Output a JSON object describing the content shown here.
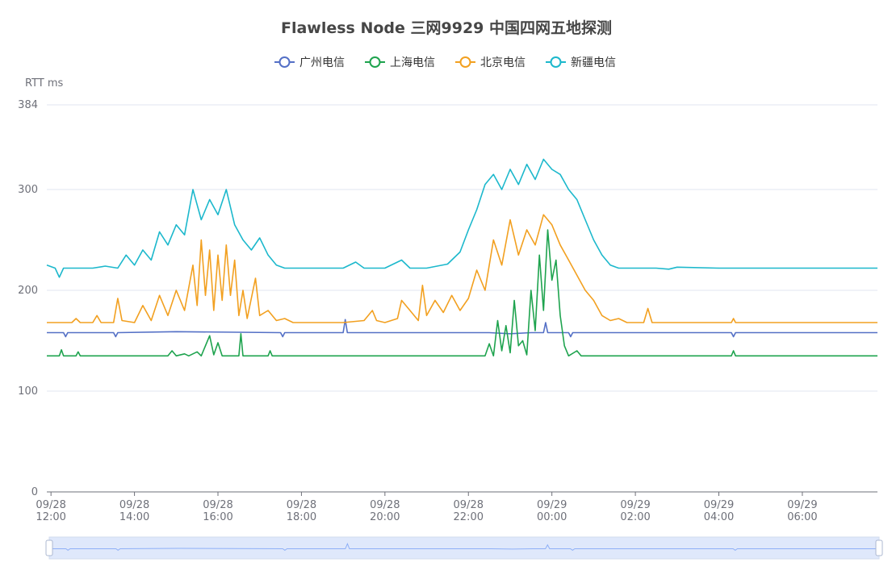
{
  "chart_data": {
    "type": "line",
    "title": "Flawless Node 三网9929 中国四网五地探测",
    "ylabel": "RTT ms",
    "ylim": [
      0,
      384
    ],
    "yticks": [
      0,
      100,
      200,
      300,
      384
    ],
    "xlim_hours": [
      11.9,
      31.8
    ],
    "x_ticks": [
      {
        "hour": 12,
        "label": [
          "09/28",
          "12:00"
        ]
      },
      {
        "hour": 14,
        "label": [
          "09/28",
          "14:00"
        ]
      },
      {
        "hour": 16,
        "label": [
          "09/28",
          "16:00"
        ]
      },
      {
        "hour": 18,
        "label": [
          "09/28",
          "18:00"
        ]
      },
      {
        "hour": 20,
        "label": [
          "09/28",
          "20:00"
        ]
      },
      {
        "hour": 22,
        "label": [
          "09/28",
          "22:00"
        ]
      },
      {
        "hour": 24,
        "label": [
          "09/29",
          "00:00"
        ]
      },
      {
        "hour": 26,
        "label": [
          "09/29",
          "02:00"
        ]
      },
      {
        "hour": 28,
        "label": [
          "09/29",
          "04:00"
        ]
      },
      {
        "hour": 30,
        "label": [
          "09/29",
          "06:00"
        ]
      }
    ],
    "grid": true,
    "legend_position": "top-center",
    "series": [
      {
        "name": "广州电信",
        "color": "#5470c6",
        "points": [
          [
            11.9,
            158
          ],
          [
            12.3,
            158
          ],
          [
            12.35,
            154
          ],
          [
            12.4,
            158
          ],
          [
            13.5,
            158
          ],
          [
            13.55,
            154
          ],
          [
            13.6,
            158
          ],
          [
            15.0,
            159
          ],
          [
            17.5,
            158
          ],
          [
            17.55,
            154
          ],
          [
            17.6,
            158
          ],
          [
            19.0,
            158
          ],
          [
            19.05,
            171
          ],
          [
            19.1,
            158
          ],
          [
            22.5,
            158
          ],
          [
            23.0,
            157
          ],
          [
            23.5,
            158
          ],
          [
            23.8,
            158
          ],
          [
            23.85,
            168
          ],
          [
            23.9,
            158
          ],
          [
            24.4,
            158
          ],
          [
            24.45,
            154
          ],
          [
            24.5,
            158
          ],
          [
            26.0,
            158
          ],
          [
            28.3,
            158
          ],
          [
            28.35,
            154
          ],
          [
            28.4,
            158
          ],
          [
            31.8,
            158
          ]
        ]
      },
      {
        "name": "上海电信",
        "color": "#1ea34e",
        "points": [
          [
            11.9,
            135
          ],
          [
            12.2,
            135
          ],
          [
            12.25,
            141
          ],
          [
            12.3,
            135
          ],
          [
            12.6,
            135
          ],
          [
            12.65,
            139
          ],
          [
            12.7,
            135
          ],
          [
            14.2,
            135
          ],
          [
            14.8,
            135
          ],
          [
            14.9,
            140
          ],
          [
            15.0,
            135
          ],
          [
            15.2,
            137
          ],
          [
            15.3,
            135
          ],
          [
            15.5,
            139
          ],
          [
            15.6,
            135
          ],
          [
            15.8,
            155
          ],
          [
            15.9,
            136
          ],
          [
            16.0,
            148
          ],
          [
            16.1,
            135
          ],
          [
            16.5,
            135
          ],
          [
            16.55,
            157
          ],
          [
            16.6,
            135
          ],
          [
            17.2,
            135
          ],
          [
            17.25,
            140
          ],
          [
            17.3,
            135
          ],
          [
            19.0,
            135
          ],
          [
            22.0,
            135
          ],
          [
            22.4,
            135
          ],
          [
            22.5,
            147
          ],
          [
            22.6,
            135
          ],
          [
            22.7,
            170
          ],
          [
            22.8,
            140
          ],
          [
            22.9,
            165
          ],
          [
            23.0,
            138
          ],
          [
            23.1,
            190
          ],
          [
            23.2,
            145
          ],
          [
            23.3,
            150
          ],
          [
            23.4,
            136
          ],
          [
            23.5,
            200
          ],
          [
            23.6,
            160
          ],
          [
            23.7,
            235
          ],
          [
            23.8,
            180
          ],
          [
            23.9,
            260
          ],
          [
            24.0,
            210
          ],
          [
            24.1,
            230
          ],
          [
            24.2,
            175
          ],
          [
            24.3,
            145
          ],
          [
            24.4,
            135
          ],
          [
            24.6,
            140
          ],
          [
            24.7,
            135
          ],
          [
            26.0,
            135
          ],
          [
            28.3,
            135
          ],
          [
            28.35,
            140
          ],
          [
            28.4,
            135
          ],
          [
            31.8,
            135
          ]
        ]
      },
      {
        "name": "北京电信",
        "color": "#f2a020",
        "points": [
          [
            11.9,
            168
          ],
          [
            12.5,
            168
          ],
          [
            12.6,
            172
          ],
          [
            12.7,
            168
          ],
          [
            13.0,
            168
          ],
          [
            13.1,
            175
          ],
          [
            13.2,
            168
          ],
          [
            13.5,
            168
          ],
          [
            13.6,
            192
          ],
          [
            13.7,
            170
          ],
          [
            14.0,
            168
          ],
          [
            14.2,
            185
          ],
          [
            14.4,
            170
          ],
          [
            14.6,
            195
          ],
          [
            14.8,
            175
          ],
          [
            15.0,
            200
          ],
          [
            15.2,
            180
          ],
          [
            15.4,
            225
          ],
          [
            15.5,
            185
          ],
          [
            15.6,
            250
          ],
          [
            15.7,
            195
          ],
          [
            15.8,
            240
          ],
          [
            15.9,
            180
          ],
          [
            16.0,
            235
          ],
          [
            16.1,
            190
          ],
          [
            16.2,
            245
          ],
          [
            16.3,
            195
          ],
          [
            16.4,
            230
          ],
          [
            16.5,
            175
          ],
          [
            16.6,
            200
          ],
          [
            16.7,
            172
          ],
          [
            16.9,
            212
          ],
          [
            17.0,
            175
          ],
          [
            17.2,
            180
          ],
          [
            17.4,
            170
          ],
          [
            17.6,
            172
          ],
          [
            17.8,
            168
          ],
          [
            19.0,
            168
          ],
          [
            19.5,
            170
          ],
          [
            19.7,
            180
          ],
          [
            19.8,
            170
          ],
          [
            20.0,
            168
          ],
          [
            20.3,
            172
          ],
          [
            20.4,
            190
          ],
          [
            20.6,
            180
          ],
          [
            20.8,
            170
          ],
          [
            20.9,
            205
          ],
          [
            21.0,
            175
          ],
          [
            21.2,
            190
          ],
          [
            21.4,
            178
          ],
          [
            21.6,
            195
          ],
          [
            21.8,
            180
          ],
          [
            22.0,
            192
          ],
          [
            22.2,
            220
          ],
          [
            22.4,
            200
          ],
          [
            22.6,
            250
          ],
          [
            22.8,
            225
          ],
          [
            23.0,
            270
          ],
          [
            23.2,
            235
          ],
          [
            23.4,
            260
          ],
          [
            23.6,
            245
          ],
          [
            23.8,
            275
          ],
          [
            24.0,
            265
          ],
          [
            24.2,
            245
          ],
          [
            24.4,
            230
          ],
          [
            24.6,
            215
          ],
          [
            24.8,
            200
          ],
          [
            25.0,
            190
          ],
          [
            25.2,
            175
          ],
          [
            25.4,
            170
          ],
          [
            25.6,
            172
          ],
          [
            25.8,
            168
          ],
          [
            26.2,
            168
          ],
          [
            26.3,
            182
          ],
          [
            26.4,
            168
          ],
          [
            28.0,
            168
          ],
          [
            28.3,
            168
          ],
          [
            28.35,
            172
          ],
          [
            28.4,
            168
          ],
          [
            31.8,
            168
          ]
        ]
      },
      {
        "name": "新疆电信",
        "color": "#1cb8cc",
        "points": [
          [
            11.9,
            225
          ],
          [
            12.1,
            222
          ],
          [
            12.2,
            213
          ],
          [
            12.3,
            222
          ],
          [
            13.0,
            222
          ],
          [
            13.3,
            224
          ],
          [
            13.6,
            222
          ],
          [
            13.8,
            235
          ],
          [
            14.0,
            225
          ],
          [
            14.2,
            240
          ],
          [
            14.4,
            230
          ],
          [
            14.6,
            258
          ],
          [
            14.8,
            245
          ],
          [
            15.0,
            265
          ],
          [
            15.2,
            255
          ],
          [
            15.4,
            300
          ],
          [
            15.6,
            270
          ],
          [
            15.8,
            290
          ],
          [
            16.0,
            275
          ],
          [
            16.2,
            300
          ],
          [
            16.4,
            265
          ],
          [
            16.6,
            250
          ],
          [
            16.8,
            240
          ],
          [
            17.0,
            252
          ],
          [
            17.2,
            235
          ],
          [
            17.4,
            225
          ],
          [
            17.6,
            222
          ],
          [
            19.0,
            222
          ],
          [
            19.3,
            228
          ],
          [
            19.5,
            222
          ],
          [
            20.0,
            222
          ],
          [
            20.4,
            230
          ],
          [
            20.6,
            222
          ],
          [
            21.0,
            222
          ],
          [
            21.5,
            226
          ],
          [
            21.8,
            238
          ],
          [
            22.0,
            260
          ],
          [
            22.2,
            280
          ],
          [
            22.4,
            305
          ],
          [
            22.6,
            315
          ],
          [
            22.8,
            300
          ],
          [
            23.0,
            320
          ],
          [
            23.2,
            305
          ],
          [
            23.4,
            325
          ],
          [
            23.6,
            310
          ],
          [
            23.8,
            330
          ],
          [
            24.0,
            320
          ],
          [
            24.2,
            315
          ],
          [
            24.4,
            300
          ],
          [
            24.6,
            290
          ],
          [
            24.8,
            270
          ],
          [
            25.0,
            250
          ],
          [
            25.2,
            235
          ],
          [
            25.4,
            225
          ],
          [
            25.6,
            222
          ],
          [
            26.5,
            222
          ],
          [
            26.8,
            221
          ],
          [
            27.0,
            223
          ],
          [
            28.0,
            222
          ],
          [
            29.0,
            222
          ],
          [
            30.0,
            222
          ],
          [
            31.8,
            222
          ]
        ]
      }
    ]
  }
}
